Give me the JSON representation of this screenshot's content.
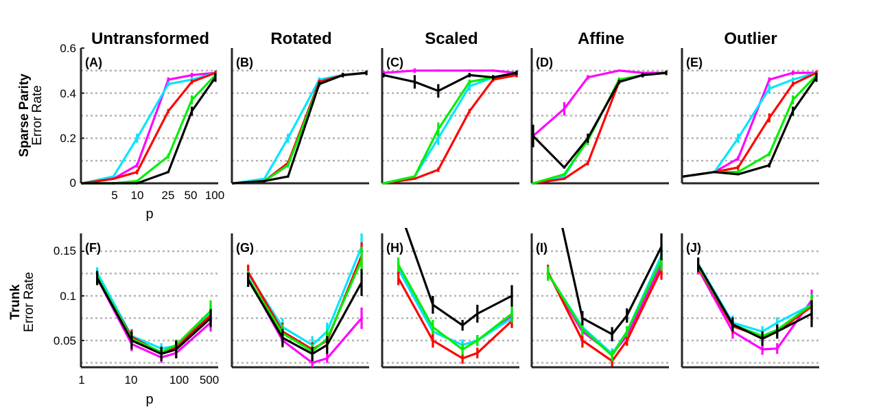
{
  "colors": {
    "magenta": "#ff00ff",
    "cyan": "#00e5ff",
    "red": "#ff0000",
    "green": "#00ee00",
    "black": "#000000"
  },
  "columns": [
    "Untransformed",
    "Rotated",
    "Scaled",
    "Affine",
    "Outlier"
  ],
  "rows": [
    {
      "bold": "Sparse Parity",
      "label": "Error Rate",
      "xlabel": "p",
      "yticks": [
        "0",
        "0.2",
        "0.4",
        "0.6"
      ],
      "xticks": [
        "5",
        "10",
        "25",
        "50",
        "100"
      ]
    },
    {
      "bold": "Trunk",
      "label": "Error Rate",
      "xlabel": "p",
      "yticks": [
        "0.05",
        "0.1",
        "0.15"
      ],
      "xticks": [
        "1",
        "10",
        "100",
        "500"
      ]
    }
  ],
  "chart_data": [
    {
      "panel": "(A)",
      "type": "line",
      "title": "Untransformed",
      "ylabel": "Sparse Parity Error Rate",
      "xlabel": "p",
      "x": [
        2,
        5,
        10,
        25,
        50,
        100
      ],
      "ylim": [
        0,
        0.6
      ],
      "grid": "horizontal dotted",
      "series": [
        {
          "color": "magenta",
          "values": [
            0,
            0.02,
            0.08,
            0.46,
            0.48,
            0.49
          ],
          "errors": [
            0.005,
            0.005,
            0.01,
            0.01,
            0.01,
            0.01
          ]
        },
        {
          "color": "cyan",
          "values": [
            0,
            0.03,
            0.2,
            0.44,
            0.46,
            0.49
          ],
          "errors": [
            0.005,
            0.005,
            0.02,
            0.01,
            0.01,
            0.01
          ]
        },
        {
          "color": "red",
          "values": [
            0,
            0.02,
            0.05,
            0.32,
            0.45,
            0.49
          ],
          "errors": [
            0.005,
            0.005,
            0.01,
            0.01,
            0.01,
            0.01
          ]
        },
        {
          "color": "green",
          "values": [
            0,
            0,
            0.01,
            0.12,
            0.37,
            0.48
          ],
          "errors": [
            0.005,
            0.005,
            0.005,
            0.01,
            0.02,
            0.01
          ]
        },
        {
          "color": "black",
          "values": [
            0,
            0,
            0,
            0.05,
            0.32,
            0.47
          ],
          "errors": [
            0.005,
            0.005,
            0.005,
            0.005,
            0.02,
            0.02
          ]
        }
      ]
    },
    {
      "panel": "(B)",
      "type": "line",
      "title": "Rotated",
      "x": [
        2,
        5,
        10,
        25,
        50,
        100
      ],
      "ylim": [
        0,
        0.6
      ],
      "series": [
        {
          "color": "magenta",
          "values": [
            0,
            0.01,
            0.08,
            0.45,
            0.48,
            0.49
          ],
          "errors": [
            0.005,
            0.005,
            0.01,
            0.01,
            0.01,
            0.01
          ]
        },
        {
          "color": "cyan",
          "values": [
            0,
            0.02,
            0.2,
            0.46,
            0.48,
            0.49
          ],
          "errors": [
            0.005,
            0.005,
            0.02,
            0.01,
            0.01,
            0.01
          ]
        },
        {
          "color": "red",
          "values": [
            0,
            0.01,
            0.09,
            0.45,
            0.48,
            0.49
          ],
          "errors": [
            0.005,
            0.005,
            0.01,
            0.01,
            0.01,
            0.01
          ]
        },
        {
          "color": "green",
          "values": [
            0,
            0.01,
            0.08,
            0.44,
            0.48,
            0.49
          ],
          "errors": [
            0.005,
            0.005,
            0.01,
            0.01,
            0.01,
            0.01
          ]
        },
        {
          "color": "black",
          "values": [
            0,
            0.01,
            0.03,
            0.44,
            0.48,
            0.49
          ],
          "errors": [
            0.005,
            0.005,
            0.005,
            0.01,
            0.01,
            0.01
          ]
        }
      ]
    },
    {
      "panel": "(C)",
      "type": "line",
      "title": "Scaled",
      "x": [
        2,
        5,
        10,
        25,
        50,
        100
      ],
      "ylim": [
        0,
        0.6
      ],
      "series": [
        {
          "color": "magenta",
          "values": [
            0.49,
            0.5,
            0.5,
            0.5,
            0.5,
            0.49
          ],
          "errors": [
            0.01,
            0.01,
            0.005,
            0.005,
            0.005,
            0.01
          ]
        },
        {
          "color": "cyan",
          "values": [
            0,
            0.03,
            0.2,
            0.43,
            0.47,
            0.49
          ],
          "errors": [
            0.005,
            0.005,
            0.03,
            0.02,
            0.01,
            0.01
          ]
        },
        {
          "color": "red",
          "values": [
            0,
            0.02,
            0.06,
            0.32,
            0.46,
            0.48
          ],
          "errors": [
            0.005,
            0.005,
            0.01,
            0.01,
            0.01,
            0.01
          ]
        },
        {
          "color": "green",
          "values": [
            0,
            0.03,
            0.24,
            0.45,
            0.47,
            0.49
          ],
          "errors": [
            0.005,
            0.005,
            0.03,
            0.01,
            0.01,
            0.01
          ]
        },
        {
          "color": "black",
          "values": [
            0.48,
            0.45,
            0.41,
            0.48,
            0.47,
            0.49
          ],
          "errors": [
            0.01,
            0.03,
            0.03,
            0.01,
            0.01,
            0.01
          ]
        }
      ]
    },
    {
      "panel": "(D)",
      "type": "line",
      "title": "Affine",
      "x": [
        2,
        5,
        10,
        25,
        50,
        100
      ],
      "ylim": [
        0,
        0.6
      ],
      "series": [
        {
          "color": "magenta",
          "values": [
            0.21,
            0.33,
            0.47,
            0.5,
            0.49,
            0.49
          ],
          "errors": [
            0.01,
            0.03,
            0.01,
            0.005,
            0.005,
            0.005
          ]
        },
        {
          "color": "cyan",
          "values": [
            0,
            0.03,
            0.2,
            0.45,
            0.48,
            0.49
          ],
          "errors": [
            0.005,
            0.005,
            0.02,
            0.01,
            0.01,
            0.01
          ]
        },
        {
          "color": "red",
          "values": [
            0,
            0.02,
            0.09,
            0.45,
            0.48,
            0.49
          ],
          "errors": [
            0.005,
            0.005,
            0.01,
            0.01,
            0.01,
            0.01
          ]
        },
        {
          "color": "green",
          "values": [
            0,
            0.04,
            0.19,
            0.46,
            0.48,
            0.49
          ],
          "errors": [
            0.005,
            0.005,
            0.02,
            0.01,
            0.01,
            0.01
          ]
        },
        {
          "color": "black",
          "values": [
            0.21,
            0.07,
            0.2,
            0.45,
            0.48,
            0.49
          ],
          "errors": [
            0.05,
            0.005,
            0.02,
            0.01,
            0.01,
            0.01
          ]
        }
      ]
    },
    {
      "panel": "(E)",
      "type": "line",
      "title": "Outlier",
      "x": [
        2,
        5,
        10,
        25,
        50,
        100
      ],
      "ylim": [
        0,
        0.6
      ],
      "series": [
        {
          "color": "magenta",
          "values": [
            0.03,
            0.05,
            0.11,
            0.46,
            0.49,
            0.49
          ],
          "errors": [
            0.005,
            0.005,
            0.01,
            0.01,
            0.01,
            0.01
          ]
        },
        {
          "color": "cyan",
          "values": [
            0.03,
            0.05,
            0.2,
            0.42,
            0.46,
            0.49
          ],
          "errors": [
            0.005,
            0.005,
            0.02,
            0.02,
            0.01,
            0.01
          ]
        },
        {
          "color": "red",
          "values": [
            0.03,
            0.05,
            0.07,
            0.29,
            0.44,
            0.49
          ],
          "errors": [
            0.005,
            0.005,
            0.01,
            0.02,
            0.01,
            0.01
          ]
        },
        {
          "color": "green",
          "values": [
            0.03,
            0.05,
            0.05,
            0.13,
            0.37,
            0.48
          ],
          "errors": [
            0.005,
            0.005,
            0.01,
            0.01,
            0.02,
            0.01
          ]
        },
        {
          "color": "black",
          "values": [
            0.03,
            0.05,
            0.04,
            0.08,
            0.32,
            0.47
          ],
          "errors": [
            0.005,
            0.005,
            0.005,
            0.01,
            0.02,
            0.02
          ]
        }
      ]
    },
    {
      "panel": "(F)",
      "type": "line",
      "title": "",
      "ylabel": "Trunk Error Rate",
      "xlabel": "p",
      "x": [
        2,
        10,
        40,
        80,
        400
      ],
      "xscale": "log",
      "ylim": [
        0.02,
        0.17
      ],
      "grid": "horizontal dotted",
      "series": [
        {
          "color": "magenta",
          "values": [
            0.12,
            0.046,
            0.031,
            0.036,
            0.07
          ],
          "errors": [
            0.006,
            0.008,
            0.006,
            0.006,
            0.01
          ]
        },
        {
          "color": "cyan",
          "values": [
            0.126,
            0.055,
            0.041,
            0.044,
            0.08
          ],
          "errors": [
            0.006,
            0.008,
            0.006,
            0.006,
            0.01
          ]
        },
        {
          "color": "red",
          "values": [
            0.12,
            0.054,
            0.036,
            0.043,
            0.078
          ],
          "errors": [
            0.006,
            0.008,
            0.006,
            0.006,
            0.01
          ]
        },
        {
          "color": "green",
          "values": [
            0.122,
            0.052,
            0.037,
            0.045,
            0.083
          ],
          "errors": [
            0.006,
            0.008,
            0.006,
            0.006,
            0.012
          ]
        },
        {
          "color": "black",
          "values": [
            0.12,
            0.05,
            0.035,
            0.04,
            0.075
          ],
          "errors": [
            0.008,
            0.01,
            0.008,
            0.01,
            0.01
          ]
        }
      ]
    },
    {
      "panel": "(G)",
      "type": "line",
      "title": "",
      "x": [
        2,
        10,
        40,
        80,
        400
      ],
      "xscale": "log",
      "ylim": [
        0.02,
        0.17
      ],
      "series": [
        {
          "color": "magenta",
          "values": [
            0.12,
            0.05,
            0.025,
            0.03,
            0.075
          ],
          "errors": [
            0.006,
            0.008,
            0.005,
            0.005,
            0.012
          ]
        },
        {
          "color": "cyan",
          "values": [
            0.125,
            0.065,
            0.045,
            0.06,
            0.155
          ],
          "errors": [
            0.008,
            0.01,
            0.01,
            0.01,
            0.015
          ]
        },
        {
          "color": "red",
          "values": [
            0.127,
            0.06,
            0.04,
            0.05,
            0.145
          ],
          "errors": [
            0.008,
            0.01,
            0.008,
            0.01,
            0.015
          ]
        },
        {
          "color": "green",
          "values": [
            0.12,
            0.058,
            0.038,
            0.052,
            0.14
          ],
          "errors": [
            0.008,
            0.01,
            0.008,
            0.01,
            0.015
          ]
        },
        {
          "color": "black",
          "values": [
            0.118,
            0.053,
            0.035,
            0.045,
            0.115
          ],
          "errors": [
            0.008,
            0.01,
            0.008,
            0.01,
            0.015
          ]
        }
      ]
    },
    {
      "panel": "(H)",
      "type": "line",
      "title": "",
      "x": [
        2,
        10,
        40,
        80,
        400
      ],
      "xscale": "log",
      "ylim": [
        0.02,
        0.17
      ],
      "series": [
        {
          "color": "magenta",
          "values": [
            0.13,
            0.06,
            0.045,
            0.05,
            0.078
          ],
          "errors": [
            0.008,
            0.008,
            0.006,
            0.006,
            0.01
          ]
        },
        {
          "color": "cyan",
          "values": [
            0.13,
            0.06,
            0.045,
            0.05,
            0.075
          ],
          "errors": [
            0.008,
            0.008,
            0.006,
            0.006,
            0.01
          ]
        },
        {
          "color": "red",
          "values": [
            0.12,
            0.05,
            0.03,
            0.036,
            0.072
          ],
          "errors": [
            0.008,
            0.008,
            0.006,
            0.006,
            0.008
          ]
        },
        {
          "color": "green",
          "values": [
            0.135,
            0.065,
            0.04,
            0.05,
            0.08
          ],
          "errors": [
            0.008,
            0.008,
            0.006,
            0.006,
            0.01
          ]
        },
        {
          "color": "black",
          "values": [
            0.2,
            0.09,
            0.067,
            0.08,
            0.1
          ],
          "errors": [
            0.01,
            0.01,
            0.006,
            0.01,
            0.012
          ]
        }
      ]
    },
    {
      "panel": "(I)",
      "type": "line",
      "title": "",
      "x": [
        2,
        10,
        40,
        80,
        400
      ],
      "xscale": "log",
      "ylim": [
        0.02,
        0.17
      ],
      "series": [
        {
          "color": "magenta",
          "values": [
            0.125,
            0.06,
            0.035,
            0.055,
            0.135
          ],
          "errors": [
            0.008,
            0.008,
            0.006,
            0.006,
            0.012
          ]
        },
        {
          "color": "cyan",
          "values": [
            0.125,
            0.065,
            0.035,
            0.06,
            0.145
          ],
          "errors": [
            0.008,
            0.008,
            0.006,
            0.006,
            0.012
          ]
        },
        {
          "color": "red",
          "values": [
            0.127,
            0.05,
            0.027,
            0.05,
            0.13
          ],
          "errors": [
            0.008,
            0.008,
            0.006,
            0.006,
            0.012
          ]
        },
        {
          "color": "green",
          "values": [
            0.125,
            0.063,
            0.033,
            0.06,
            0.14
          ],
          "errors": [
            0.008,
            0.008,
            0.006,
            0.006,
            0.012
          ]
        },
        {
          "color": "black",
          "values": [
            0.25,
            0.075,
            0.057,
            0.078,
            0.155
          ],
          "errors": [
            0.01,
            0.008,
            0.008,
            0.008,
            0.015
          ]
        }
      ]
    },
    {
      "panel": "(J)",
      "type": "line",
      "title": "",
      "x": [
        2,
        10,
        40,
        80,
        400
      ],
      "xscale": "log",
      "ylim": [
        0.02,
        0.17
      ],
      "series": [
        {
          "color": "magenta",
          "values": [
            0.13,
            0.06,
            0.04,
            0.041,
            0.095
          ],
          "errors": [
            0.006,
            0.008,
            0.006,
            0.006,
            0.012
          ]
        },
        {
          "color": "cyan",
          "values": [
            0.136,
            0.07,
            0.06,
            0.07,
            0.09
          ],
          "errors": [
            0.006,
            0.008,
            0.006,
            0.006,
            0.012
          ]
        },
        {
          "color": "red",
          "values": [
            0.132,
            0.066,
            0.054,
            0.06,
            0.088
          ],
          "errors": [
            0.006,
            0.008,
            0.006,
            0.006,
            0.012
          ]
        },
        {
          "color": "green",
          "values": [
            0.133,
            0.068,
            0.055,
            0.062,
            0.09
          ],
          "errors": [
            0.006,
            0.008,
            0.006,
            0.006,
            0.012
          ]
        },
        {
          "color": "black",
          "values": [
            0.135,
            0.068,
            0.052,
            0.06,
            0.08
          ],
          "errors": [
            0.008,
            0.008,
            0.008,
            0.008,
            0.015
          ]
        }
      ]
    }
  ]
}
